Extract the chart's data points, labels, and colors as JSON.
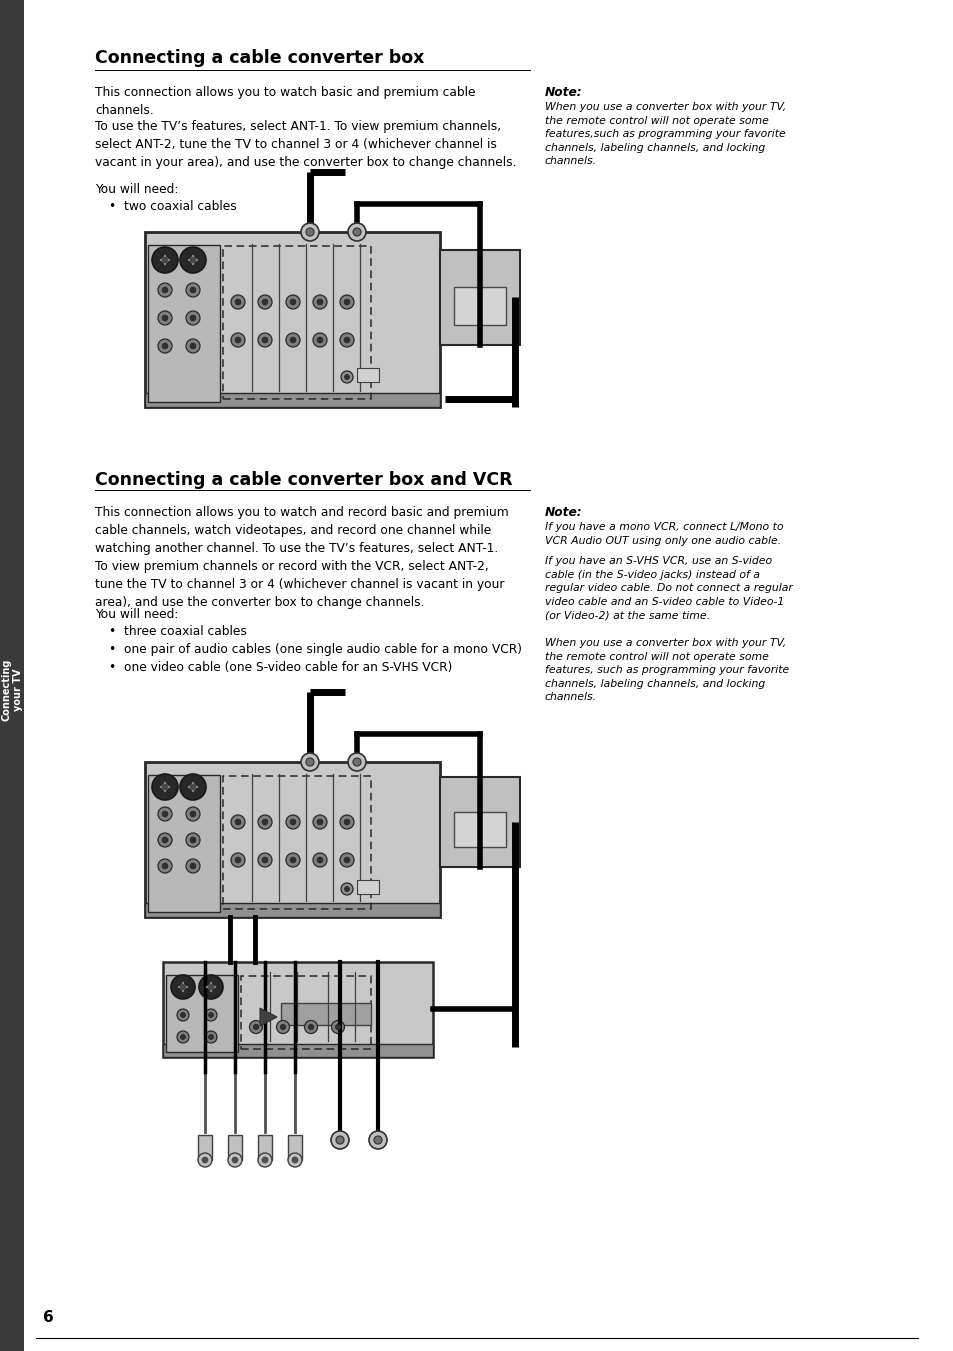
{
  "bg_color": "#ffffff",
  "sidebar_color": "#3a3a3a",
  "sidebar_text": "Connecting\nyour TV",
  "page_number": "6",
  "section1_title": "Connecting a cable converter box",
  "section1_body1": "This connection allows you to watch basic and premium cable\nchannels.",
  "section1_body2": "To use the TV’s features, select ANT-1. To view premium channels,\nselect ANT-2, tune the TV to channel 3 or 4 (whichever channel is\nvacant in your area), and use the converter box to change channels.",
  "section1_body3": "You will need:",
  "section1_bullets": [
    "two coaxial cables"
  ],
  "section1_note_title": "Note:",
  "section1_note_body": "When you use a converter box with your TV,\nthe remote control will not operate some\nfeatures,such as programming your favorite\nchannels, labeling channels, and locking\nchannels.",
  "section2_title": "Connecting a cable converter box and VCR",
  "section2_body1": "This connection allows you to watch and record basic and premium\ncable channels, watch videotapes, and record one channel while\nwatching another channel. To use the TV’s features, select ANT-1.\nTo view premium channels or record with the VCR, select ANT-2,\ntune the TV to channel 3 or 4 (whichever channel is vacant in your\narea), and use the converter box to change channels.",
  "section2_body2": "You will need:",
  "section2_bullets": [
    "three coaxial cables",
    "one pair of audio cables (one single audio cable for a mono VCR)",
    "one video cable (one S-video cable for an S-VHS VCR)"
  ],
  "section2_note_title": "Note:",
  "section2_note_body1": "If you have a mono VCR, connect L/Mono to\nVCR Audio OUT using only one audio cable.",
  "section2_note_body2": "If you have an S-VHS VCR, use an S-video\ncable (in the S-video jacks) instead of a\nregular video cable. Do not connect a regular\nvideo cable and an S-video cable to Video-1\n(or Video-2) at the same time.",
  "section2_note_body3": "When you use a converter box with your TV,\nthe remote control will not operate some\nfeatures, such as programming your favorite\nchannels, labeling channels, and locking\nchannels.",
  "c_gray": "#c8c8c8",
  "c_dark": "#404040",
  "c_mid": "#888888",
  "c_light": "#d8d8d8",
  "c_black": "#000000",
  "c_panel": "#b4b4b4"
}
